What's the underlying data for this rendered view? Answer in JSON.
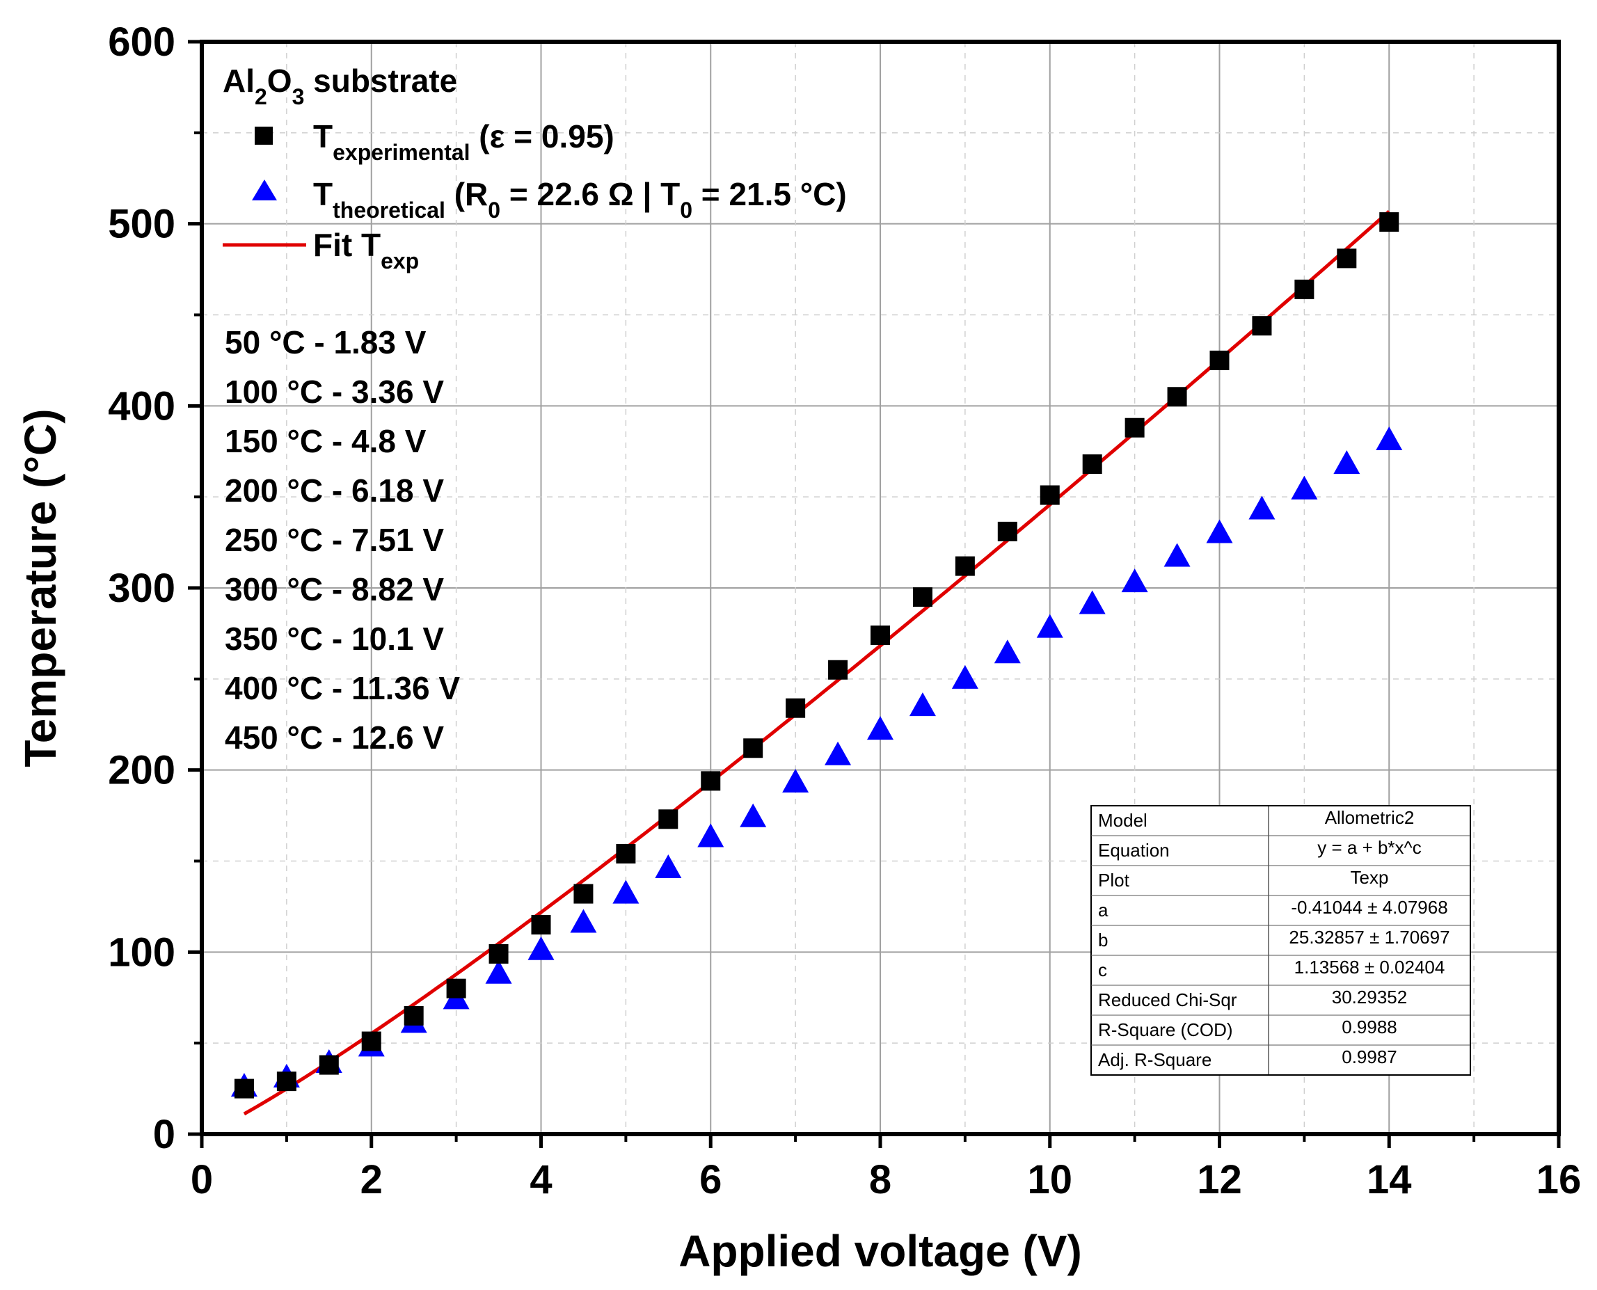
{
  "chart_data": {
    "type": "scatter",
    "xlabel": "Applied voltage (V)",
    "ylabel": "Temperature (°C)",
    "xlim": [
      0,
      16
    ],
    "ylim": [
      0,
      600
    ],
    "xticks": [
      "0",
      "2",
      "4",
      "6",
      "8",
      "10",
      "12",
      "14",
      "16"
    ],
    "yticks": [
      "0",
      "100",
      "200",
      "300",
      "400",
      "500",
      "600"
    ],
    "grid": true,
    "legend": {
      "title_main": "Al",
      "title_sub1": "2",
      "title_mid": "O",
      "title_sub2": "3",
      "title_end": " substrate",
      "exp_main": "T",
      "exp_sub": "experimental",
      "exp_end": " (ε = 0.95)",
      "theo_main": "T",
      "theo_sub": "theoretical",
      "theo_mid1": " (R",
      "theo_r_sub": "0",
      "theo_mid2": " = 22.6 Ω | T",
      "theo_t_sub": "0",
      "theo_end": " = 21.5 °C)",
      "fit_main": "Fit T",
      "fit_sub": "exp"
    },
    "annotations": [
      "50 °C - 1.83 V",
      "100 °C - 3.36 V",
      "150 °C - 4.8 V",
      "200 °C - 6.18 V",
      "250 °C - 7.51 V",
      "300 °C - 8.82 V",
      "350 °C - 10.1 V",
      "400 °C - 11.36 V",
      "450 °C - 12.6 V"
    ],
    "series": [
      {
        "name": "T experimental (ε = 0.95)",
        "marker": "square",
        "color": "#000000",
        "x": [
          0.5,
          1,
          1.5,
          2,
          2.5,
          3,
          3.5,
          4,
          4.5,
          5,
          5.5,
          6,
          6.5,
          7,
          7.5,
          8,
          8.5,
          9,
          9.5,
          10,
          10.5,
          11,
          11.5,
          12,
          12.5,
          13,
          13.5,
          14
        ],
        "y": [
          25,
          29,
          38,
          51,
          65,
          80,
          99,
          115,
          132,
          154,
          173,
          194,
          212,
          234,
          255,
          274,
          295,
          312,
          331,
          351,
          368,
          388,
          405,
          425,
          444,
          464,
          481,
          501
        ]
      },
      {
        "name": "T theoretical (R0 = 22.6 Ω | T0 = 21.5 °C)",
        "marker": "triangle",
        "color": "#0000ff",
        "x": [
          0.5,
          1,
          1.5,
          2,
          2.5,
          3,
          3.5,
          4,
          4.5,
          5,
          5.5,
          6,
          6.5,
          7,
          7.5,
          8,
          8.5,
          9,
          9.5,
          10,
          10.5,
          11,
          11.5,
          12,
          12.5,
          13,
          13.5,
          14
        ],
        "y": [
          26,
          31,
          39,
          48,
          61,
          74,
          88,
          101,
          116,
          132,
          146,
          163,
          174,
          193,
          208,
          222,
          235,
          250,
          264,
          278,
          291,
          303,
          317,
          330,
          343,
          354,
          368,
          381
        ]
      },
      {
        "name": "Fit T exp",
        "type": "line",
        "color": "#e00000",
        "model": "y = a + b*x^c",
        "params": {
          "a": -0.41044,
          "b": 25.32857,
          "c": 1.13568
        },
        "x_range": [
          0.5,
          14
        ]
      }
    ],
    "fit_table": [
      [
        "Model",
        "Allometric2"
      ],
      [
        "Equation",
        "y = a + b*x^c"
      ],
      [
        "Plot",
        "Texp"
      ],
      [
        "a",
        "-0.41044 ± 4.07968"
      ],
      [
        "b",
        "25.32857 ± 1.70697"
      ],
      [
        "c",
        "1.13568 ± 0.02404"
      ],
      [
        "Reduced Chi-Sqr",
        "30.29352"
      ],
      [
        "R-Square (COD)",
        "0.9988"
      ],
      [
        "Adj. R-Square",
        "0.9987"
      ]
    ]
  }
}
